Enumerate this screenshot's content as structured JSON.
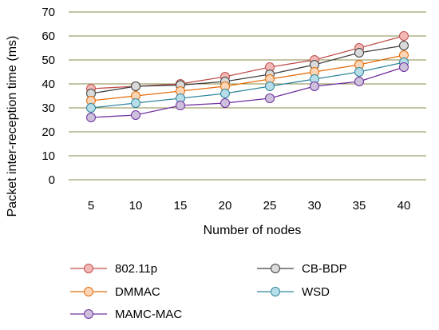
{
  "chart_data": {
    "type": "line",
    "title": "",
    "xlabel": "Number of nodes",
    "ylabel": "Packet inter-reception time (ms)",
    "categories": [
      "5",
      "10",
      "15",
      "20",
      "25",
      "30",
      "35",
      "40"
    ],
    "ylim": [
      0,
      70
    ],
    "yticks": [
      0,
      10,
      20,
      30,
      40,
      50,
      60,
      70
    ],
    "grid": true,
    "legend_position": "bottom",
    "series": [
      {
        "name": "802.11p",
        "color": "#c0504d",
        "marker_fill": "#f2b8b5",
        "values": [
          38,
          39,
          40,
          43,
          47,
          50,
          55,
          60
        ]
      },
      {
        "name": "CB-BDP",
        "color": "#404040",
        "marker_fill": "#d9d9d9",
        "values": [
          36,
          39,
          39.5,
          41,
          44,
          48,
          53,
          56
        ]
      },
      {
        "name": "DMMAC",
        "color": "#e46c0a",
        "marker_fill": "#fbd5b5",
        "values": [
          33,
          35,
          37,
          39,
          42,
          45,
          48,
          52
        ]
      },
      {
        "name": "WSD",
        "color": "#31859c",
        "marker_fill": "#b7dee8",
        "values": [
          30,
          32,
          34,
          36,
          39,
          42,
          45,
          49
        ]
      },
      {
        "name": "MAMC-MAC",
        "color": "#7030a0",
        "marker_fill": "#ccc0da",
        "values": [
          26,
          27,
          31,
          32,
          34,
          39,
          41,
          47
        ]
      }
    ]
  }
}
